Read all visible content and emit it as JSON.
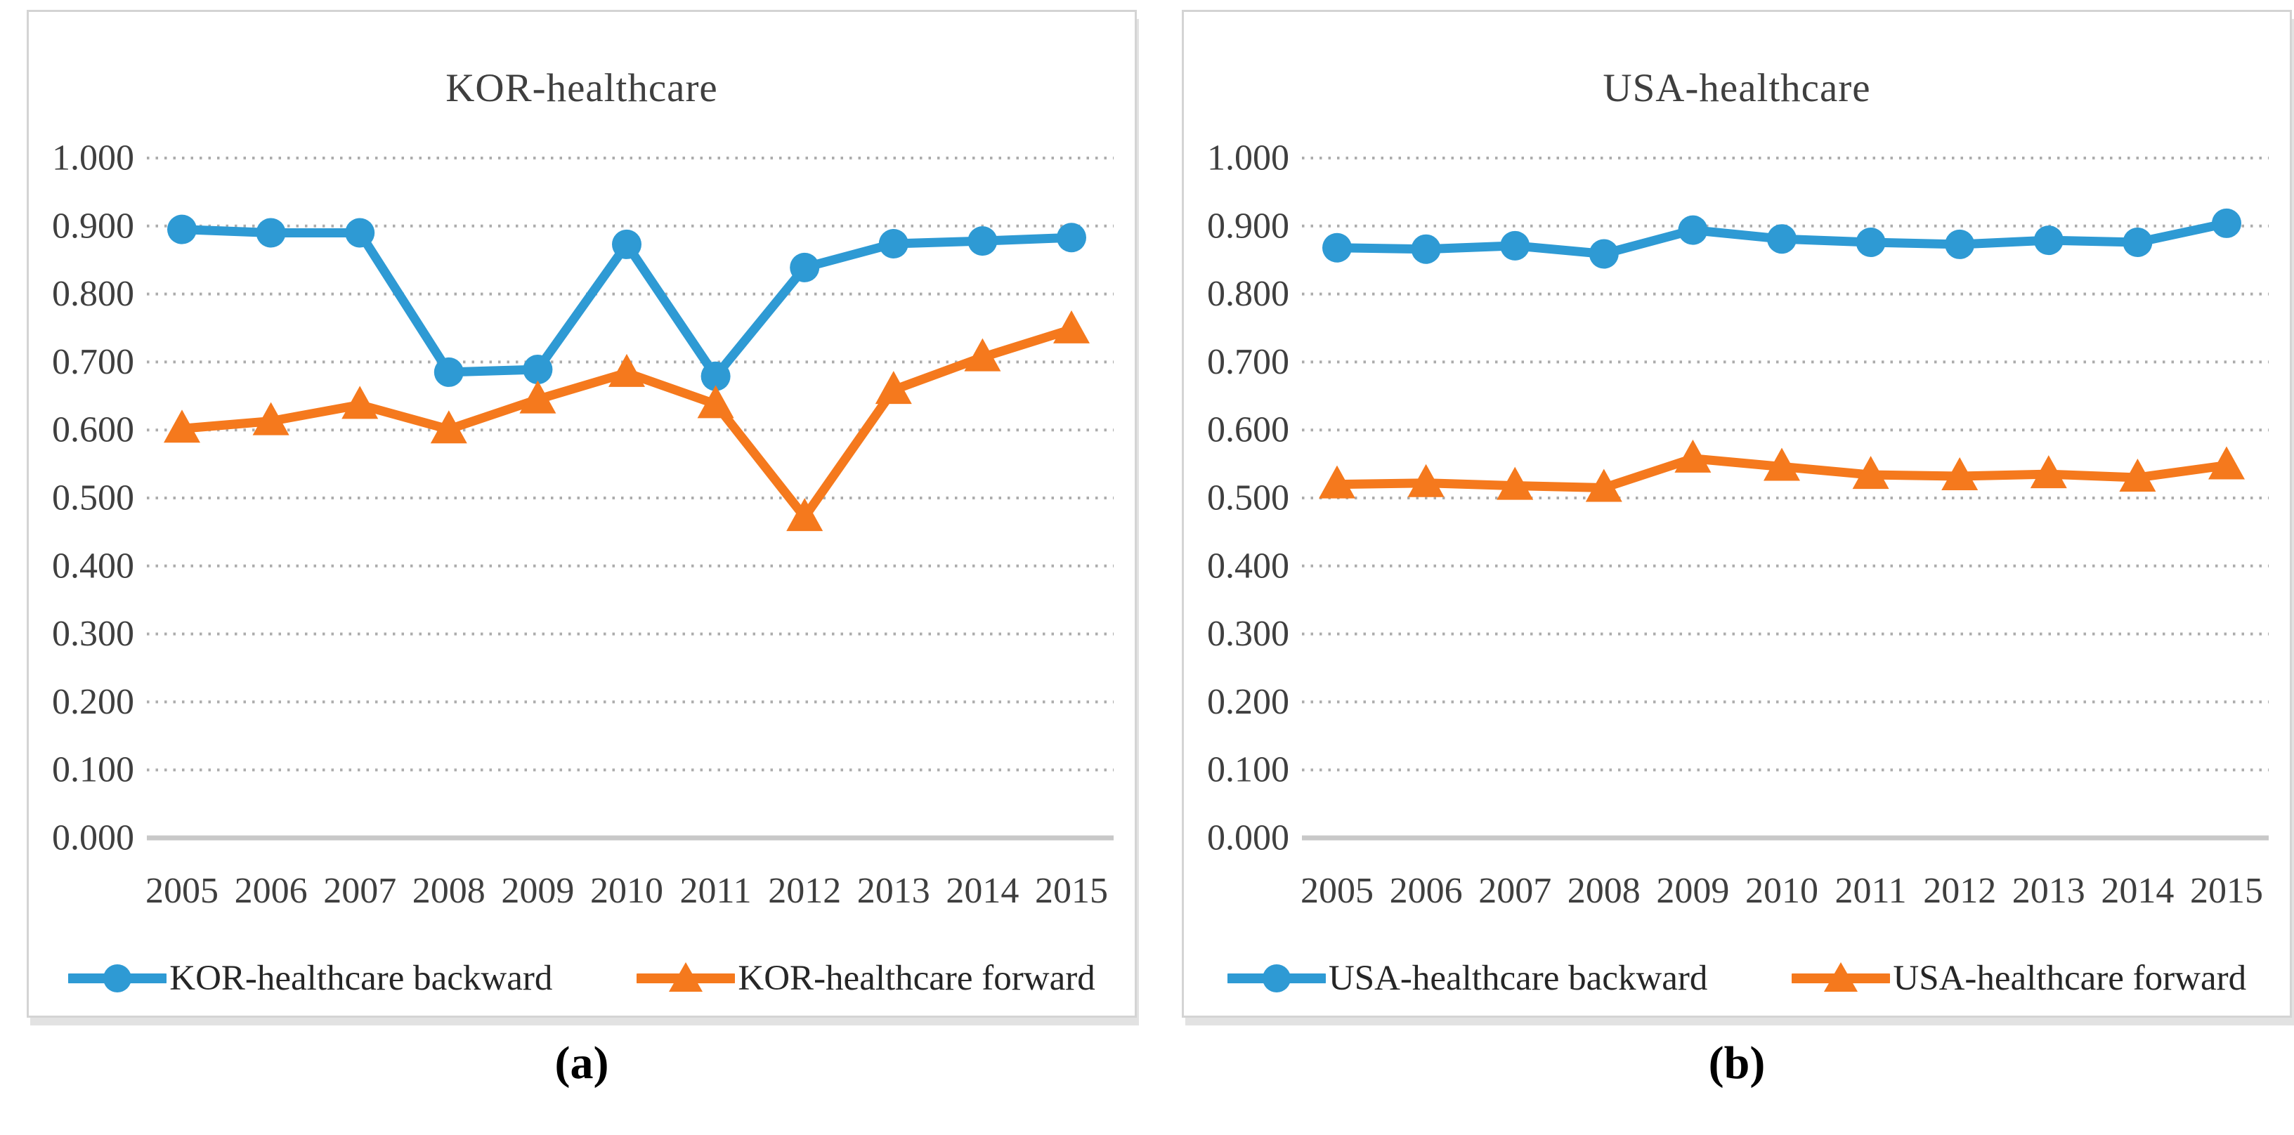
{
  "figure": {
    "captions": [
      "(a)",
      "(b)"
    ],
    "colors": {
      "backward_series": "#2E9AD4",
      "forward_series": "#F5791D",
      "gridline": "#ACACAC",
      "baseline": "#C8C8C8",
      "axis_text": "#3F3F3F",
      "title_text": "#3F3F3F",
      "legend_text": "#262626",
      "panel_border": "#D4D4D4"
    }
  },
  "chart_data": [
    {
      "type": "line",
      "title": "KOR-healthcare",
      "x": [
        "2005",
        "2006",
        "2007",
        "2008",
        "2009",
        "2010",
        "2011",
        "2012",
        "2013",
        "2014",
        "2015"
      ],
      "ylim": [
        0,
        1
      ],
      "ytick_interval": 0.1,
      "yticklabels": [
        "1.000",
        "0.900",
        "0.800",
        "0.700",
        "0.600",
        "0.500",
        "0.400",
        "0.300",
        "0.200",
        "0.100",
        "0.000"
      ],
      "grid": "horizontal-dotted",
      "legend_position": "bottom",
      "series": [
        {
          "name": "KOR-healthcare backward",
          "marker": "circle",
          "color": "#2E9AD4",
          "values": [
            0.895,
            0.89,
            0.89,
            0.685,
            0.689,
            0.873,
            0.679,
            0.839,
            0.874,
            0.878,
            0.883
          ]
        },
        {
          "name": "KOR-healthcare forward",
          "marker": "triangle",
          "color": "#F5791D",
          "values": [
            0.602,
            0.613,
            0.637,
            0.601,
            0.645,
            0.684,
            0.638,
            0.472,
            0.659,
            0.707,
            0.748
          ]
        }
      ]
    },
    {
      "type": "line",
      "title": "USA-healthcare",
      "x": [
        "2005",
        "2006",
        "2007",
        "2008",
        "2009",
        "2010",
        "2011",
        "2012",
        "2013",
        "2014",
        "2015"
      ],
      "ylim": [
        0,
        1
      ],
      "ytick_interval": 0.1,
      "yticklabels": [
        "1.000",
        "0.900",
        "0.800",
        "0.700",
        "0.600",
        "0.500",
        "0.400",
        "0.300",
        "0.200",
        "0.100",
        "0.000"
      ],
      "grid": "horizontal-dotted",
      "legend_position": "bottom",
      "series": [
        {
          "name": "USA-healthcare backward",
          "marker": "circle",
          "color": "#2E9AD4",
          "values": [
            0.868,
            0.866,
            0.871,
            0.859,
            0.894,
            0.881,
            0.876,
            0.873,
            0.879,
            0.876,
            0.904
          ]
        },
        {
          "name": "USA-healthcare forward",
          "marker": "triangle",
          "color": "#F5791D",
          "values": [
            0.52,
            0.522,
            0.518,
            0.515,
            0.558,
            0.546,
            0.534,
            0.532,
            0.535,
            0.53,
            0.548
          ]
        }
      ]
    }
  ]
}
